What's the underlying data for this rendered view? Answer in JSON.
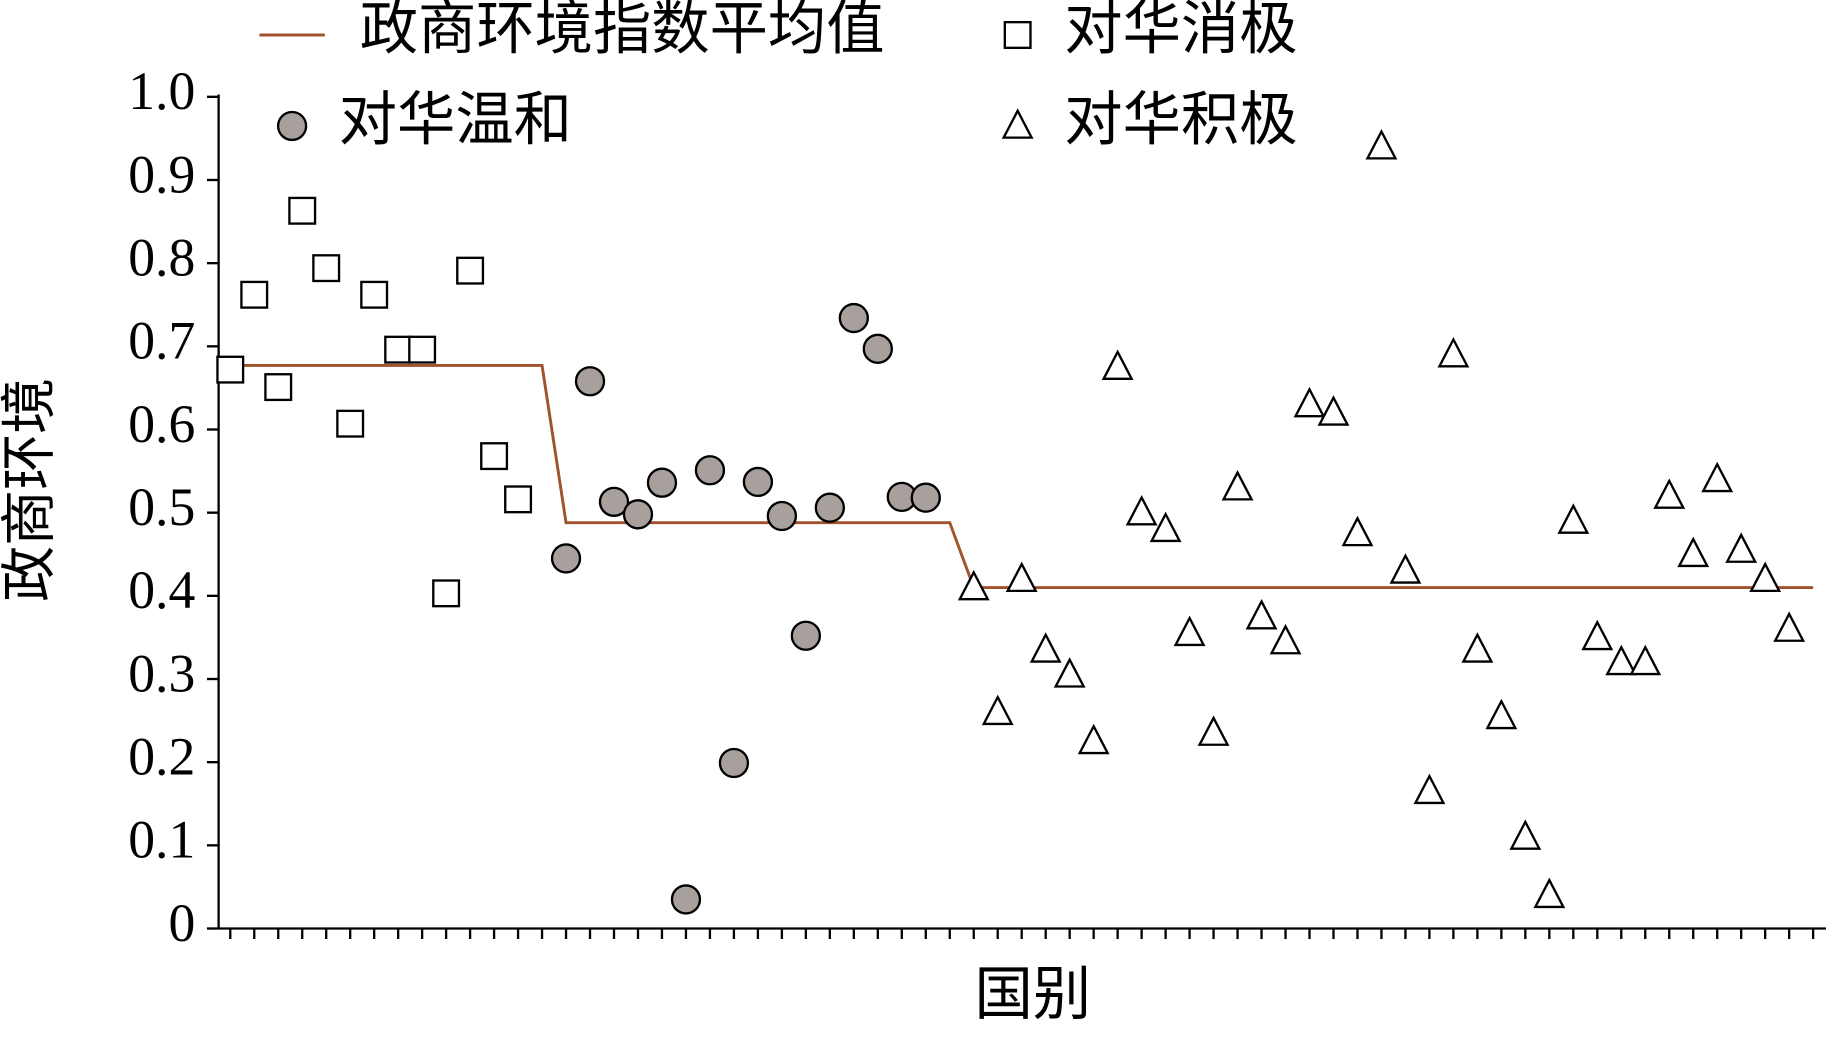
{
  "chart_data": {
    "type": "scatter",
    "xlabel": "国别",
    "ylabel": "政商环境",
    "categories": [
      null,
      null,
      null,
      null,
      null,
      null,
      null,
      null,
      null,
      null,
      null,
      null,
      null,
      null,
      null,
      null,
      null,
      null,
      null,
      null,
      null,
      null,
      null,
      null,
      null,
      null,
      null,
      null,
      null,
      null,
      null,
      null,
      null,
      null,
      null,
      null,
      null,
      null,
      null,
      null,
      null,
      null,
      null,
      null,
      null,
      null,
      null,
      null,
      null,
      null,
      null,
      null,
      null,
      null,
      null,
      null,
      null,
      null,
      null,
      null,
      null,
      null,
      null,
      null,
      null,
      null,
      null
    ],
    "ylim": [
      0,
      1
    ],
    "yticks": [
      0,
      0.1,
      0.2,
      0.3,
      0.4,
      0.5,
      0.6,
      0.7,
      0.8,
      0.9,
      {
        "value": 1,
        "label": "1.0"
      }
    ],
    "series": [
      {
        "name": "政商环境指数平均值",
        "marker": "line",
        "color": "#a0522d",
        "values": [
          0.677,
          0.677,
          0.677,
          0.677,
          0.677,
          0.677,
          0.677,
          0.677,
          0.677,
          0.677,
          0.677,
          0.677,
          0.677,
          0.677,
          0.488,
          0.488,
          0.488,
          0.488,
          0.488,
          0.488,
          0.488,
          0.488,
          0.488,
          0.488,
          0.488,
          0.488,
          0.488,
          0.488,
          0.488,
          0.488,
          0.488,
          0.41,
          0.41,
          0.41,
          0.41,
          0.41,
          0.41,
          0.41,
          0.41,
          0.41,
          0.41,
          0.41,
          0.41,
          0.41,
          0.41,
          0.41,
          0.41,
          0.41,
          0.41,
          0.41,
          0.41,
          0.41,
          0.41,
          0.41,
          0.41,
          0.41,
          0.41,
          0.41,
          0.41,
          0.41,
          0.41,
          0.41,
          0.41,
          0.41,
          0.41,
          0.41,
          0.41
        ]
      },
      {
        "name": "对华消极",
        "marker": "square",
        "color": "#ffffff",
        "values": [
          0.672,
          0.762,
          0.651,
          0.863,
          0.794,
          0.607,
          0.762,
          0.696,
          0.696,
          0.403,
          0.791,
          0.568,
          0.516,
          null,
          null,
          null,
          null,
          null,
          null,
          null,
          null,
          null,
          null,
          null,
          null,
          null,
          null,
          null,
          null,
          null,
          null,
          null,
          null,
          null,
          null,
          null,
          null,
          null,
          null,
          null,
          null,
          null,
          null,
          null,
          null,
          null,
          null,
          null,
          null,
          null,
          null,
          null,
          null,
          null,
          null,
          null,
          null,
          null,
          null,
          null,
          null,
          null,
          null,
          null,
          null,
          null,
          null
        ]
      },
      {
        "name": "对华温和",
        "marker": "circle",
        "color": "#a8a09c",
        "values": [
          null,
          null,
          null,
          null,
          null,
          null,
          null,
          null,
          null,
          null,
          null,
          null,
          null,
          null,
          0.445,
          0.658,
          0.513,
          0.498,
          0.536,
          0.035,
          0.551,
          0.199,
          0.537,
          0.496,
          0.352,
          0.506,
          0.734,
          0.697,
          0.519,
          0.518,
          null,
          null,
          null,
          null,
          null,
          null,
          null,
          null,
          null,
          null,
          null,
          null,
          null,
          null,
          null,
          null,
          null,
          null,
          null,
          null,
          null,
          null,
          null,
          null,
          null,
          null,
          null,
          null,
          null,
          null,
          null,
          null,
          null,
          null,
          null,
          null,
          null
        ]
      },
      {
        "name": "对华积极",
        "marker": "triangle",
        "color": "#ffffff",
        "values": [
          null,
          null,
          null,
          null,
          null,
          null,
          null,
          null,
          null,
          null,
          null,
          null,
          null,
          null,
          null,
          null,
          null,
          null,
          null,
          null,
          null,
          null,
          null,
          null,
          null,
          null,
          null,
          null,
          null,
          null,
          null,
          0.41,
          0.26,
          0.42,
          0.335,
          0.305,
          0.225,
          0.675,
          0.5,
          0.48,
          0.355,
          0.235,
          0.53,
          0.375,
          0.345,
          0.63,
          0.62,
          0.475,
          0.94,
          0.43,
          0.165,
          0.69,
          0.335,
          0.255,
          0.11,
          0.04,
          0.49,
          0.35,
          0.32,
          0.32,
          0.52,
          0.45,
          0.54,
          0.455,
          0.42,
          0.36,
          null
        ]
      }
    ]
  }
}
